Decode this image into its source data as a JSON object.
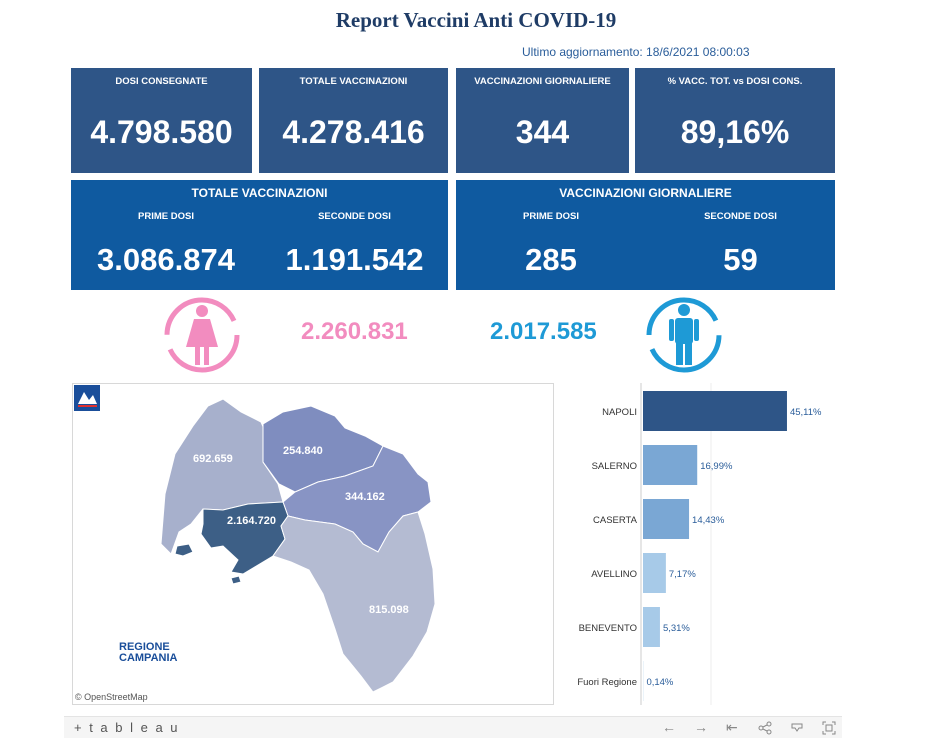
{
  "title": "Report Vaccini Anti COVID-19",
  "last_update": "Ultimo aggiornamento: 18/6/2021 08:00:03",
  "kpis": [
    {
      "label": "DOSI  CONSEGNATE",
      "value": "4.798.580"
    },
    {
      "label": "TOTALE VACCINAZIONI",
      "value": "4.278.416"
    },
    {
      "label": "VACCINAZIONI GIORNALIERE",
      "value": "344"
    },
    {
      "label": "% VACC. TOT. vs DOSI CONS.",
      "value": "89,16%"
    }
  ],
  "totals_panel": {
    "title": "TOTALE VACCINAZIONI",
    "first_label": "PRIME DOSI",
    "first_value": "3.086.874",
    "second_label": "SECONDE DOSI",
    "second_value": "1.191.542"
  },
  "daily_panel": {
    "title": "VACCINAZIONI GIORNALIERE",
    "first_label": "PRIME DOSI",
    "first_value": "285",
    "second_label": "SECONDE DOSI",
    "second_value": "59"
  },
  "gender": {
    "female_value": "2.260.831",
    "female_color": "#f28cbf",
    "male_value": "2.017.585",
    "male_color": "#1e9ad6"
  },
  "map": {
    "labels": {
      "caserta": "692.659",
      "benevento": "254.840",
      "avellino": "344.162",
      "napoli": "2.164.720",
      "salerno": "815.098"
    },
    "colors": {
      "caserta": "#a7b0cc",
      "benevento": "#7f8dbf",
      "avellino": "#8894c4",
      "napoli": "#3d5f86",
      "salerno": "#b4bbd2"
    },
    "logo_line1": "REGIONE",
    "logo_line2": "CAMPANIA",
    "attribution": "© OpenStreetMap"
  },
  "chart_data": {
    "type": "bar",
    "orientation": "horizontal",
    "categories": [
      "NAPOLI",
      "SALERNO",
      "CASERTA",
      "AVELLINO",
      "BENEVENTO",
      "Fuori Regione"
    ],
    "values": [
      45.11,
      16.99,
      14.43,
      7.17,
      5.31,
      0.14
    ],
    "value_labels": [
      "45,11%",
      "16,99%",
      "14,43%",
      "7,17%",
      "5,31%",
      "0,14%"
    ],
    "colors": [
      "#2e5587",
      "#7aa7d4",
      "#7aa7d4",
      "#a7cae8",
      "#a7cae8",
      "#d6e6f4"
    ],
    "title": "",
    "xlabel": "",
    "ylabel": ""
  },
  "footer": {
    "brand": "+ t a b l e a u",
    "controls": [
      "←",
      "→",
      "⇤",
      "share",
      "download",
      "fullscreen"
    ]
  }
}
